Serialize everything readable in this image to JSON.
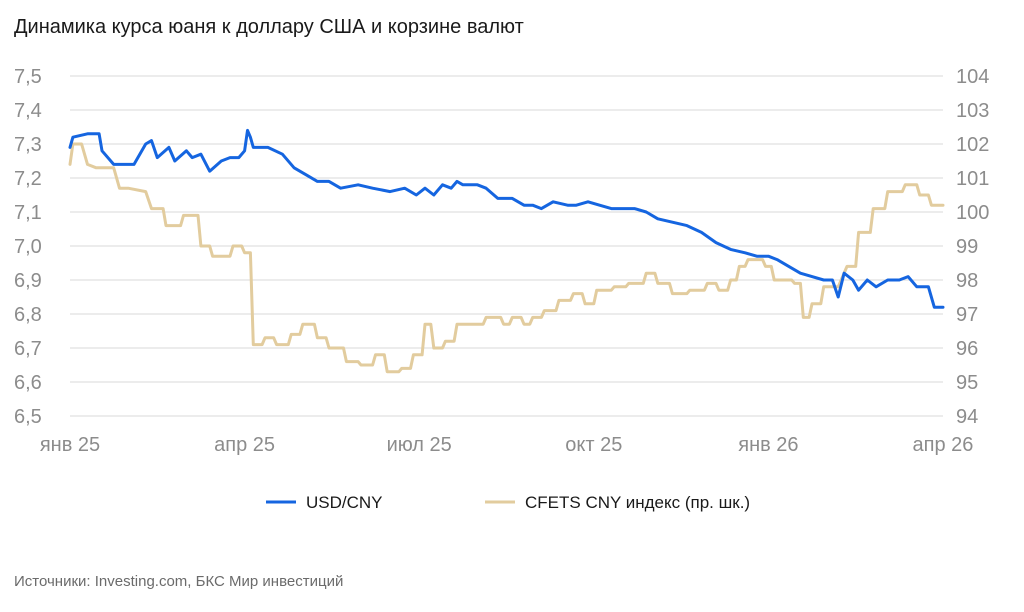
{
  "title": "Динамика курса юаня к доллару США и корзине валют",
  "source": "Источники: Investing.com, БКС Мир инвестиций",
  "colors": {
    "usd_cny": "#1565e0",
    "cfets": "#e2cc9e",
    "grid": "#d9d9d9",
    "tick": "#8c8c8c"
  },
  "chart_data": {
    "type": "line",
    "title": "Динамика курса юаня к доллару США и корзине валют",
    "x_range": [
      0,
      15
    ],
    "x_ticks": [
      {
        "x": 0,
        "label": "янв 25"
      },
      {
        "x": 3,
        "label": "апр 25"
      },
      {
        "x": 6,
        "label": "июл 25"
      },
      {
        "x": 9,
        "label": "окт 25"
      },
      {
        "x": 12,
        "label": "янв 26"
      },
      {
        "x": 15,
        "label": "апр 26"
      }
    ],
    "y_left": {
      "min": 6.5,
      "max": 7.5,
      "ticks": [
        "7,5",
        "7,4",
        "7,3",
        "7,2",
        "7,1",
        "7,0",
        "6,9",
        "6,8",
        "6,7",
        "6,6",
        "6,5"
      ],
      "values": [
        7.5,
        7.4,
        7.3,
        7.2,
        7.1,
        7.0,
        6.9,
        6.8,
        6.7,
        6.6,
        6.5
      ]
    },
    "y_right": {
      "min": 94,
      "max": 104,
      "ticks": [
        "104",
        "103",
        "102",
        "101",
        "100",
        "99",
        "98",
        "97",
        "96",
        "95",
        "94"
      ],
      "values": [
        104,
        103,
        102,
        101,
        100,
        99,
        98,
        97,
        96,
        95,
        94
      ],
      "label": "пр. шк."
    },
    "legend": [
      "USD/CNY",
      "CFETS CNY индекс (пр. шк.)"
    ],
    "series": [
      {
        "name": "USD/CNY",
        "axis": "left",
        "points": [
          [
            0.0,
            7.29
          ],
          [
            0.05,
            7.32
          ],
          [
            0.3,
            7.33
          ],
          [
            0.5,
            7.33
          ],
          [
            0.55,
            7.28
          ],
          [
            0.75,
            7.24
          ],
          [
            1.1,
            7.24
          ],
          [
            1.3,
            7.3
          ],
          [
            1.4,
            7.31
          ],
          [
            1.5,
            7.26
          ],
          [
            1.7,
            7.29
          ],
          [
            1.8,
            7.25
          ],
          [
            2.0,
            7.28
          ],
          [
            2.1,
            7.26
          ],
          [
            2.25,
            7.27
          ],
          [
            2.4,
            7.22
          ],
          [
            2.6,
            7.25
          ],
          [
            2.75,
            7.26
          ],
          [
            2.9,
            7.26
          ],
          [
            3.0,
            7.28
          ],
          [
            3.05,
            7.34
          ],
          [
            3.1,
            7.32
          ],
          [
            3.15,
            7.29
          ],
          [
            3.4,
            7.29
          ],
          [
            3.65,
            7.27
          ],
          [
            3.85,
            7.23
          ],
          [
            4.05,
            7.21
          ],
          [
            4.25,
            7.19
          ],
          [
            4.45,
            7.19
          ],
          [
            4.65,
            7.17
          ],
          [
            4.95,
            7.18
          ],
          [
            5.2,
            7.17
          ],
          [
            5.5,
            7.16
          ],
          [
            5.75,
            7.17
          ],
          [
            5.95,
            7.15
          ],
          [
            6.1,
            7.17
          ],
          [
            6.25,
            7.15
          ],
          [
            6.4,
            7.18
          ],
          [
            6.55,
            7.17
          ],
          [
            6.65,
            7.19
          ],
          [
            6.75,
            7.18
          ],
          [
            6.85,
            7.18
          ],
          [
            7.0,
            7.18
          ],
          [
            7.15,
            7.17
          ],
          [
            7.35,
            7.14
          ],
          [
            7.6,
            7.14
          ],
          [
            7.8,
            7.12
          ],
          [
            7.95,
            7.12
          ],
          [
            8.1,
            7.11
          ],
          [
            8.3,
            7.13
          ],
          [
            8.55,
            7.12
          ],
          [
            8.7,
            7.12
          ],
          [
            8.9,
            7.13
          ],
          [
            9.1,
            7.12
          ],
          [
            9.3,
            7.11
          ],
          [
            9.5,
            7.11
          ],
          [
            9.7,
            7.11
          ],
          [
            9.9,
            7.1
          ],
          [
            10.1,
            7.08
          ],
          [
            10.35,
            7.07
          ],
          [
            10.6,
            7.06
          ],
          [
            10.85,
            7.04
          ],
          [
            11.1,
            7.01
          ],
          [
            11.35,
            6.99
          ],
          [
            11.6,
            6.98
          ],
          [
            11.8,
            6.97
          ],
          [
            12.0,
            6.97
          ],
          [
            12.15,
            6.96
          ],
          [
            12.35,
            6.94
          ],
          [
            12.55,
            6.92
          ],
          [
            12.75,
            6.91
          ],
          [
            12.95,
            6.9
          ],
          [
            13.1,
            6.9
          ],
          [
            13.2,
            6.85
          ],
          [
            13.3,
            6.92
          ],
          [
            13.45,
            6.9
          ],
          [
            13.55,
            6.87
          ],
          [
            13.7,
            6.9
          ],
          [
            13.85,
            6.88
          ],
          [
            14.05,
            6.9
          ],
          [
            14.25,
            6.9
          ],
          [
            14.4,
            6.91
          ],
          [
            14.55,
            6.88
          ],
          [
            14.75,
            6.88
          ],
          [
            14.85,
            6.82
          ],
          [
            15.0,
            6.82
          ]
        ]
      },
      {
        "name": "CFETS CNY индекс (пр. шк.)",
        "axis": "right",
        "points": [
          [
            0.0,
            101.4
          ],
          [
            0.05,
            102.0
          ],
          [
            0.2,
            102.0
          ],
          [
            0.3,
            101.4
          ],
          [
            0.45,
            101.3
          ],
          [
            0.6,
            101.3
          ],
          [
            0.75,
            101.3
          ],
          [
            0.85,
            100.7
          ],
          [
            1.0,
            100.7
          ],
          [
            1.3,
            100.6
          ],
          [
            1.4,
            100.1
          ],
          [
            1.6,
            100.1
          ],
          [
            1.65,
            99.6
          ],
          [
            1.9,
            99.6
          ],
          [
            1.95,
            99.9
          ],
          [
            2.2,
            99.9
          ],
          [
            2.25,
            99.0
          ],
          [
            2.4,
            99.0
          ],
          [
            2.45,
            98.7
          ],
          [
            2.75,
            98.7
          ],
          [
            2.8,
            99.0
          ],
          [
            2.95,
            99.0
          ],
          [
            3.0,
            98.8
          ],
          [
            3.1,
            98.8
          ],
          [
            3.15,
            96.1
          ],
          [
            3.3,
            96.1
          ],
          [
            3.35,
            96.3
          ],
          [
            3.5,
            96.3
          ],
          [
            3.55,
            96.1
          ],
          [
            3.75,
            96.1
          ],
          [
            3.8,
            96.4
          ],
          [
            3.95,
            96.4
          ],
          [
            4.0,
            96.7
          ],
          [
            4.2,
            96.7
          ],
          [
            4.25,
            96.3
          ],
          [
            4.4,
            96.3
          ],
          [
            4.45,
            96.0
          ],
          [
            4.7,
            96.0
          ],
          [
            4.75,
            95.6
          ],
          [
            4.95,
            95.6
          ],
          [
            5.0,
            95.5
          ],
          [
            5.2,
            95.5
          ],
          [
            5.25,
            95.8
          ],
          [
            5.4,
            95.8
          ],
          [
            5.45,
            95.3
          ],
          [
            5.65,
            95.3
          ],
          [
            5.7,
            95.4
          ],
          [
            5.85,
            95.4
          ],
          [
            5.9,
            95.8
          ],
          [
            6.05,
            95.8
          ],
          [
            6.1,
            96.7
          ],
          [
            6.2,
            96.7
          ],
          [
            6.25,
            96.0
          ],
          [
            6.4,
            96.0
          ],
          [
            6.45,
            96.2
          ],
          [
            6.6,
            96.2
          ],
          [
            6.65,
            96.7
          ],
          [
            6.9,
            96.7
          ],
          [
            6.95,
            96.7
          ],
          [
            7.1,
            96.7
          ],
          [
            7.15,
            96.9
          ],
          [
            7.4,
            96.9
          ],
          [
            7.45,
            96.7
          ],
          [
            7.55,
            96.7
          ],
          [
            7.6,
            96.9
          ],
          [
            7.75,
            96.9
          ],
          [
            7.8,
            96.7
          ],
          [
            7.9,
            96.7
          ],
          [
            7.95,
            96.9
          ],
          [
            8.1,
            96.9
          ],
          [
            8.15,
            97.1
          ],
          [
            8.35,
            97.1
          ],
          [
            8.4,
            97.4
          ],
          [
            8.6,
            97.4
          ],
          [
            8.65,
            97.6
          ],
          [
            8.8,
            97.6
          ],
          [
            8.85,
            97.3
          ],
          [
            9.0,
            97.3
          ],
          [
            9.05,
            97.7
          ],
          [
            9.3,
            97.7
          ],
          [
            9.35,
            97.8
          ],
          [
            9.55,
            97.8
          ],
          [
            9.6,
            97.9
          ],
          [
            9.85,
            97.9
          ],
          [
            9.9,
            98.2
          ],
          [
            10.05,
            98.2
          ],
          [
            10.1,
            97.9
          ],
          [
            10.3,
            97.9
          ],
          [
            10.35,
            97.6
          ],
          [
            10.6,
            97.6
          ],
          [
            10.65,
            97.7
          ],
          [
            10.9,
            97.7
          ],
          [
            10.95,
            97.9
          ],
          [
            11.1,
            97.9
          ],
          [
            11.15,
            97.7
          ],
          [
            11.3,
            97.7
          ],
          [
            11.35,
            98.0
          ],
          [
            11.45,
            98.0
          ],
          [
            11.5,
            98.4
          ],
          [
            11.6,
            98.4
          ],
          [
            11.65,
            98.6
          ],
          [
            11.9,
            98.6
          ],
          [
            11.95,
            98.4
          ],
          [
            12.05,
            98.4
          ],
          [
            12.1,
            98.0
          ],
          [
            12.4,
            98.0
          ],
          [
            12.45,
            97.9
          ],
          [
            12.55,
            97.9
          ],
          [
            12.6,
            96.9
          ],
          [
            12.7,
            96.9
          ],
          [
            12.75,
            97.3
          ],
          [
            12.9,
            97.3
          ],
          [
            12.95,
            97.8
          ],
          [
            13.2,
            97.8
          ],
          [
            13.35,
            98.4
          ],
          [
            13.5,
            98.4
          ],
          [
            13.55,
            99.4
          ],
          [
            13.75,
            99.4
          ],
          [
            13.8,
            100.1
          ],
          [
            14.0,
            100.1
          ],
          [
            14.05,
            100.6
          ],
          [
            14.3,
            100.6
          ],
          [
            14.35,
            100.8
          ],
          [
            14.55,
            100.8
          ],
          [
            14.6,
            100.5
          ],
          [
            14.75,
            100.5
          ],
          [
            14.8,
            100.2
          ],
          [
            15.0,
            100.2
          ]
        ]
      }
    ]
  }
}
